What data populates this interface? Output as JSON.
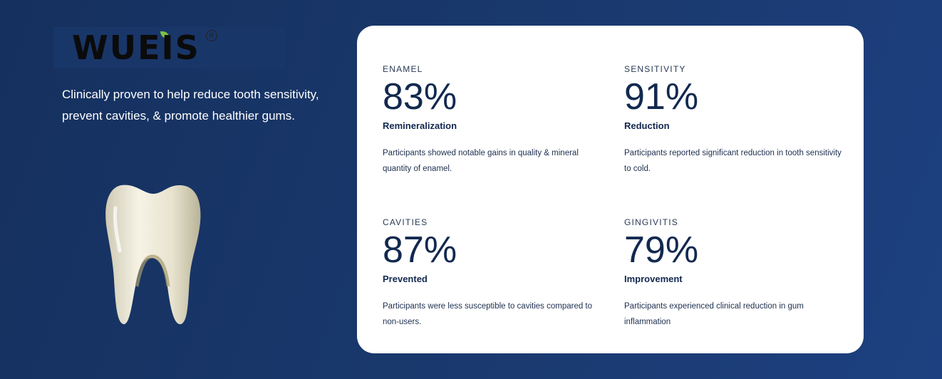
{
  "brand": {
    "logo_text": "WUEIS",
    "registered": "R",
    "leaf_color": "#7dc242"
  },
  "hero": {
    "tagline": "Clinically proven to help reduce tooth sensitivity, prevent cavities, & promote healthier gums."
  },
  "colors": {
    "background": "#19386c",
    "card": "#ffffff",
    "text": "#12294f"
  },
  "stats": [
    {
      "label": "ENAMEL",
      "value": "83%",
      "subtitle": "Remineralization",
      "description": "Participants showed notable gains in quality & mineral quantity of enamel."
    },
    {
      "label": "SENSITIVITY",
      "value": "91%",
      "subtitle": "Reduction",
      "description": "Participants reported significant reduction in tooth sensitivity to cold."
    },
    {
      "label": "CAVITIES",
      "value": "87%",
      "subtitle": "Prevented",
      "description": "Participants were less susceptible to cavities compared to non-users."
    },
    {
      "label": "GINGIVITIS",
      "value": "79%",
      "subtitle": "Improvement",
      "description": "Participants experienced clinical reduction in gum inflammation"
    }
  ]
}
